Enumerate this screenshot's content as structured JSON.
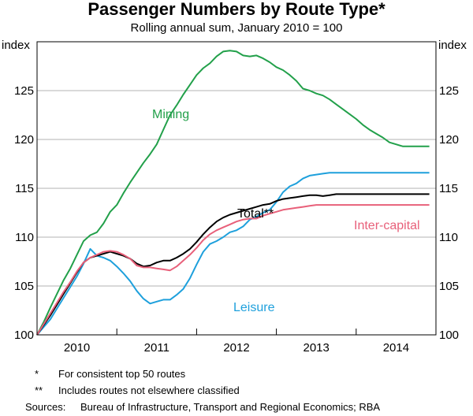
{
  "chart_data": {
    "type": "line",
    "title": "Passenger Numbers by Route Type*",
    "subtitle": "Rolling annual sum, January 2010 = 100",
    "ylabel_left": "index",
    "ylabel_right": "index",
    "ylim": [
      100,
      130
    ],
    "yticks": [
      100,
      105,
      110,
      115,
      120,
      125
    ],
    "xlim": [
      2010.0,
      2015.0
    ],
    "xtick_labels": [
      "2010",
      "2011",
      "2012",
      "2013",
      "2014"
    ],
    "x": [
      2010.0,
      2010.083,
      2010.167,
      2010.25,
      2010.333,
      2010.417,
      2010.5,
      2010.583,
      2010.667,
      2010.75,
      2010.833,
      2010.917,
      2011.0,
      2011.083,
      2011.167,
      2011.25,
      2011.333,
      2011.417,
      2011.5,
      2011.583,
      2011.667,
      2011.75,
      2011.833,
      2011.917,
      2012.0,
      2012.083,
      2012.167,
      2012.25,
      2012.333,
      2012.417,
      2012.5,
      2012.583,
      2012.667,
      2012.75,
      2012.833,
      2012.917,
      2013.0,
      2013.083,
      2013.167,
      2013.25,
      2013.333,
      2013.417,
      2013.5,
      2013.583,
      2013.667,
      2013.75,
      2013.833,
      2013.917,
      2014.0,
      2014.083,
      2014.167,
      2014.25,
      2014.333,
      2014.417,
      2014.5,
      2014.583,
      2014.667,
      2014.75,
      2014.833,
      2014.917
    ],
    "series": [
      {
        "name": "Mining",
        "label": "Mining",
        "color": "#22a04a",
        "values": [
          100.0,
          101.3,
          102.8,
          104.2,
          105.6,
          106.8,
          108.2,
          109.6,
          110.2,
          110.5,
          111.4,
          112.6,
          113.3,
          114.5,
          115.6,
          116.6,
          117.6,
          118.5,
          119.5,
          121.0,
          122.5,
          123.5,
          124.6,
          125.6,
          126.6,
          127.3,
          127.8,
          128.5,
          129.0,
          129.1,
          129.0,
          128.6,
          128.5,
          128.6,
          128.3,
          127.9,
          127.4,
          127.1,
          126.6,
          126.0,
          125.2,
          125.0,
          124.7,
          124.5,
          124.1,
          123.6,
          123.1,
          122.6,
          122.1,
          121.5,
          121.0,
          120.6,
          120.2,
          119.7,
          119.5,
          119.3,
          119.3,
          119.3,
          119.3,
          119.3
        ]
      },
      {
        "name": "Leisure",
        "label": "Leisure",
        "color": "#1ea0dc",
        "values": [
          100.0,
          100.8,
          101.6,
          102.7,
          103.8,
          104.9,
          106.0,
          107.3,
          108.8,
          108.1,
          107.9,
          107.6,
          107.0,
          106.3,
          105.5,
          104.5,
          103.7,
          103.2,
          103.4,
          103.6,
          103.6,
          104.1,
          104.7,
          105.8,
          107.2,
          108.5,
          109.3,
          109.6,
          110.0,
          110.5,
          110.7,
          111.1,
          111.8,
          112.1,
          112.5,
          112.8,
          113.6,
          114.6,
          115.2,
          115.5,
          116.0,
          116.3,
          116.4,
          116.5,
          116.6,
          116.6,
          116.6,
          116.6,
          116.6,
          116.6,
          116.6,
          116.6,
          116.6,
          116.6,
          116.6,
          116.6,
          116.6,
          116.6,
          116.6,
          116.6
        ]
      },
      {
        "name": "Total**",
        "label": "Total**",
        "color": "#000000",
        "values": [
          100.0,
          101.0,
          102.0,
          103.1,
          104.2,
          105.3,
          106.4,
          107.4,
          107.9,
          108.1,
          108.3,
          108.5,
          108.3,
          108.1,
          107.8,
          107.3,
          107.0,
          107.1,
          107.4,
          107.6,
          107.6,
          107.9,
          108.3,
          108.8,
          109.5,
          110.3,
          111.0,
          111.6,
          112.0,
          112.3,
          112.5,
          112.7,
          112.9,
          113.1,
          113.3,
          113.4,
          113.7,
          113.9,
          114.0,
          114.1,
          114.2,
          114.3,
          114.3,
          114.2,
          114.3,
          114.4,
          114.4,
          114.4,
          114.4,
          114.4,
          114.4,
          114.4,
          114.4,
          114.4,
          114.4,
          114.4,
          114.4,
          114.4,
          114.4,
          114.4
        ]
      },
      {
        "name": "Inter-capital",
        "label": "Inter-capital",
        "color": "#e8607a",
        "values": [
          100.0,
          101.1,
          102.2,
          103.3,
          104.4,
          105.4,
          106.5,
          107.4,
          107.9,
          108.2,
          108.5,
          108.6,
          108.5,
          108.2,
          107.8,
          107.1,
          106.9,
          106.9,
          106.8,
          106.7,
          106.6,
          107.0,
          107.6,
          108.2,
          108.9,
          109.7,
          110.3,
          110.7,
          111.0,
          111.3,
          111.6,
          111.8,
          111.9,
          111.9,
          112.2,
          112.4,
          112.6,
          112.8,
          112.9,
          113.0,
          113.1,
          113.2,
          113.3,
          113.3,
          113.3,
          113.3,
          113.3,
          113.3,
          113.3,
          113.3,
          113.3,
          113.3,
          113.3,
          113.3,
          113.3,
          113.3,
          113.3,
          113.3,
          113.3,
          113.3
        ]
      }
    ]
  },
  "notes": [
    {
      "mark": "*",
      "text": "For consistent top 50 routes"
    },
    {
      "mark": "**",
      "text": "Includes routes not elsewhere classified"
    }
  ],
  "sources": {
    "label": "Sources:",
    "text": "Bureau of Infrastructure, Transport and Regional Economics; RBA"
  }
}
